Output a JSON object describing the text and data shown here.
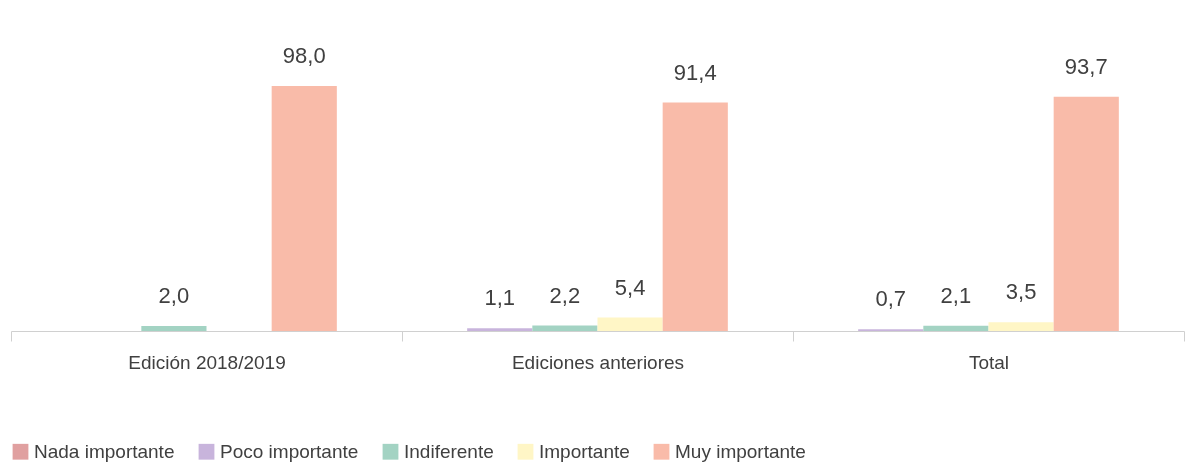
{
  "chart_data": {
    "type": "bar",
    "categories": [
      "Edición 2018/2019",
      "Ediciones anteriores",
      "Total"
    ],
    "series": [
      {
        "name": "Nada importante",
        "color": "#e0a0a0",
        "values": [
          null,
          null,
          null
        ],
        "value_labels": [
          null,
          null,
          null
        ]
      },
      {
        "name": "Poco importante",
        "color": "#c8b4dc",
        "values": [
          null,
          1.1,
          0.7
        ],
        "value_labels": [
          null,
          "1,1",
          "0,7"
        ]
      },
      {
        "name": "Indiferente",
        "color": "#a3d3c3",
        "values": [
          2.0,
          2.2,
          2.1
        ],
        "value_labels": [
          "2,0",
          "2,2",
          "2,1"
        ]
      },
      {
        "name": "Importante",
        "color": "#fff6c6",
        "values": [
          null,
          5.4,
          3.5
        ],
        "value_labels": [
          null,
          "5,4",
          "3,5"
        ]
      },
      {
        "name": "Muy importante",
        "color": "#f9bba9",
        "values": [
          98.0,
          91.4,
          93.7
        ],
        "value_labels": [
          "98,0",
          "91,4",
          "93,7"
        ]
      }
    ],
    "tick_labels": "x",
    "grid": false,
    "legend": "bottom"
  }
}
